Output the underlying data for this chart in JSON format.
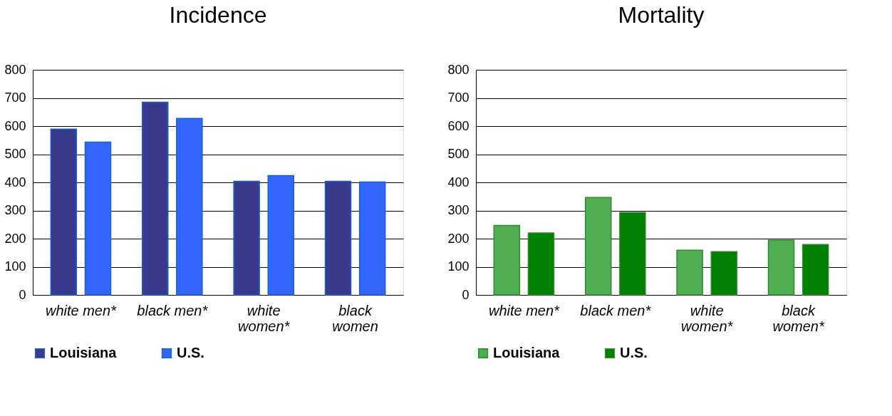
{
  "chart_data": [
    {
      "type": "bar",
      "title": "Incidence",
      "categories": [
        "white men*",
        "black men*",
        "white women*",
        "black women"
      ],
      "series": [
        {
          "name": "Louisiana",
          "color": "#3a3a8c",
          "values": [
            589,
            685,
            404,
            404
          ]
        },
        {
          "name": "U.S.",
          "color": "#3366ff",
          "values": [
            543,
            627,
            424,
            401
          ]
        }
      ],
      "ylim": [
        0,
        800
      ],
      "yticks": [
        0,
        100,
        200,
        300,
        400,
        500,
        600,
        700,
        800
      ],
      "grid": "y",
      "legend": "bottom"
    },
    {
      "type": "bar",
      "title": "Mortality",
      "categories": [
        "white men*",
        "black men*",
        "white women*",
        "black women*"
      ],
      "series": [
        {
          "name": "Louisiana",
          "color": "#4fae4f",
          "values": [
            247,
            346,
            159,
            194
          ]
        },
        {
          "name": "U.S.",
          "color": "#008000",
          "values": [
            220,
            293,
            154,
            179
          ]
        }
      ],
      "ylim": [
        0,
        800
      ],
      "yticks": [
        0,
        100,
        200,
        300,
        400,
        500,
        600,
        700,
        800
      ],
      "grid": "y",
      "legend": "bottom"
    }
  ]
}
